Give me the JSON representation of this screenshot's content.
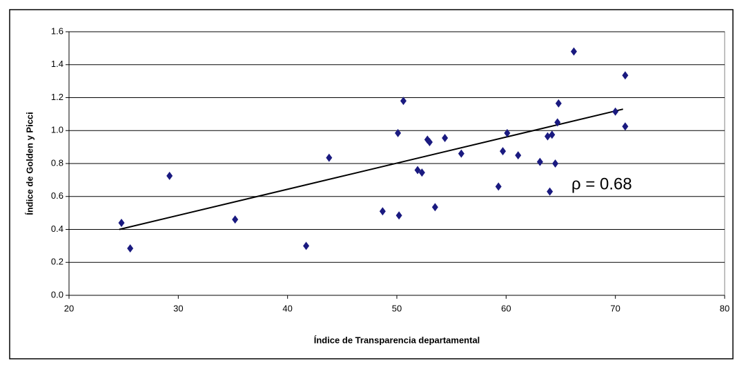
{
  "chart_data": {
    "type": "scatter",
    "x_label": "Índice de Transparencia departamental",
    "y_label": "Índice de Golden y Picci",
    "annotation": "ρ = 0.68",
    "series": [
      {
        "color": "#1a1a80",
        "x": [
          24.8,
          25.6,
          29.2,
          35.2,
          41.7,
          43.8,
          48.7,
          50.1,
          50.2,
          50.6,
          51.9,
          52.3,
          52.8,
          53.0,
          53.5,
          54.4,
          55.9,
          59.3,
          59.7,
          60.1,
          61.1,
          63.1,
          63.8,
          64.0,
          64.2,
          64.5,
          64.7,
          64.8,
          66.2,
          70.0,
          70.9,
          70.9
        ],
        "values": [
          0.44,
          0.285,
          0.725,
          0.46,
          0.3,
          0.835,
          0.51,
          0.985,
          0.485,
          1.18,
          0.76,
          0.745,
          0.945,
          0.93,
          0.535,
          0.955,
          0.86,
          0.66,
          0.875,
          0.985,
          0.85,
          0.81,
          0.965,
          0.63,
          0.975,
          0.8,
          1.05,
          1.165,
          1.48,
          1.115,
          1.025,
          1.335
        ]
      }
    ],
    "trendline": {
      "color": "#000000",
      "x": [
        24.6,
        70.7
      ],
      "values": [
        0.4,
        1.13
      ]
    },
    "xlim": [
      20,
      80
    ],
    "xticks": [
      20,
      30,
      40,
      50,
      60,
      70,
      80
    ],
    "ylim": [
      0,
      1.6
    ],
    "yticks": [
      {
        "value": 0,
        "label": "0.0"
      },
      0.2,
      0.4,
      0.6,
      0.8,
      {
        "value": 1,
        "label": "1.0"
      },
      1.2,
      1.4,
      1.6
    ],
    "grid": true
  }
}
